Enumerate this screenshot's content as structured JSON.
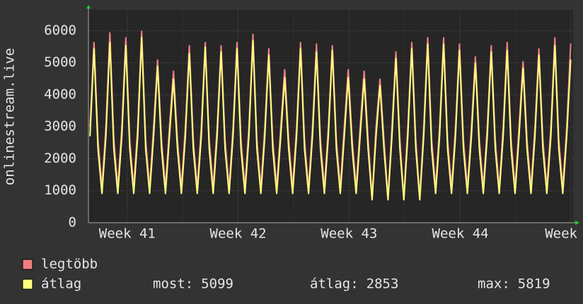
{
  "chart_data": {
    "type": "line",
    "y_label": "onlinestream.live",
    "ylim": [
      0,
      6650
    ],
    "yticks": [
      0,
      1000,
      2000,
      3000,
      4000,
      5000,
      6000
    ],
    "xlim": [
      0,
      30.5
    ],
    "xticks": [
      {
        "value": 2.44,
        "label": "Week 41"
      },
      {
        "value": 9.42,
        "label": "Week 42"
      },
      {
        "value": 16.4,
        "label": "Week 43"
      },
      {
        "value": 23.4,
        "label": "Week 44"
      },
      {
        "value": 30.36,
        "label": "Week"
      }
    ],
    "grid": true,
    "x": [
      0.1,
      0.35,
      0.6,
      0.85,
      1.1,
      1.35,
      1.6,
      1.85,
      2.1,
      2.35,
      2.6,
      2.85,
      3.1,
      3.35,
      3.6,
      3.85,
      4.1,
      4.35,
      4.6,
      4.85,
      5.1,
      5.35,
      5.6,
      5.85,
      6.1,
      6.35,
      6.6,
      6.85,
      7.1,
      7.35,
      7.6,
      7.85,
      8.1,
      8.35,
      8.6,
      8.85,
      9.1,
      9.35,
      9.6,
      9.85,
      10.1,
      10.35,
      10.6,
      10.85,
      11.1,
      11.35,
      11.6,
      11.85,
      12.1,
      12.35,
      12.6,
      12.85,
      13.1,
      13.35,
      13.6,
      13.85,
      14.1,
      14.35,
      14.6,
      14.85,
      15.1,
      15.35,
      15.6,
      15.85,
      16.1,
      16.35,
      16.6,
      16.85,
      17.1,
      17.35,
      17.6,
      17.85,
      18.1,
      18.35,
      18.6,
      18.85,
      19.1,
      19.35,
      19.6,
      19.85,
      20.1,
      20.35,
      20.6,
      20.85,
      21.1,
      21.35,
      21.6,
      21.85,
      22.1,
      22.35,
      22.6,
      22.85,
      23.1,
      23.35,
      23.6,
      23.85,
      24.1,
      24.35,
      24.6,
      24.85,
      25.1,
      25.35,
      25.6,
      25.85,
      26.1,
      26.35,
      26.6,
      26.85,
      27.1,
      27.35,
      27.6,
      27.85,
      28.1,
      28.35,
      28.6,
      28.85,
      29.1,
      29.35,
      29.6,
      29.85,
      30.1,
      30.35
    ],
    "series": [
      {
        "name": "legtöbb",
        "color": "#f07f7f",
        "values": [
          3000,
          5650,
          2600,
          1100,
          3000,
          5950,
          2600,
          1100,
          3000,
          5800,
          2600,
          1100,
          3000,
          6000,
          2600,
          1100,
          3000,
          5100,
          2600,
          1100,
          3000,
          4750,
          2600,
          1100,
          3000,
          5550,
          2600,
          1100,
          3000,
          5650,
          2600,
          1100,
          3000,
          5550,
          2600,
          1100,
          3000,
          5650,
          2600,
          1100,
          3000,
          5900,
          2600,
          1100,
          3000,
          5450,
          2600,
          1100,
          3000,
          4800,
          2600,
          1100,
          3000,
          5650,
          2600,
          1100,
          3000,
          5600,
          2600,
          1100,
          3000,
          5550,
          2600,
          1100,
          3000,
          4800,
          2600,
          1100,
          3000,
          4750,
          2600,
          800,
          3000,
          4500,
          2600,
          800,
          3000,
          5350,
          2600,
          800,
          3000,
          5650,
          2600,
          800,
          3000,
          5800,
          2600,
          1100,
          3000,
          5800,
          2600,
          1100,
          3000,
          5600,
          2600,
          1100,
          3000,
          5200,
          2600,
          1100,
          3000,
          5550,
          2600,
          1100,
          3000,
          5650,
          2600,
          1100,
          3000,
          5050,
          2600,
          1100,
          3000,
          5450,
          2600,
          1100,
          3000,
          5800,
          2600,
          1100,
          3000,
          5600
        ]
      },
      {
        "name": "átlag",
        "color": "#ffff80",
        "values": [
          2700,
          5450,
          2300,
          900,
          2700,
          5650,
          2300,
          900,
          2700,
          5550,
          2300,
          900,
          2700,
          5800,
          2300,
          900,
          2700,
          4900,
          2300,
          900,
          2700,
          4500,
          2300,
          900,
          2700,
          5300,
          2300,
          900,
          2700,
          5500,
          2300,
          900,
          2700,
          5350,
          2300,
          900,
          2700,
          5450,
          2300,
          900,
          2700,
          5700,
          2300,
          900,
          2700,
          5250,
          2300,
          900,
          2700,
          4550,
          2300,
          900,
          2700,
          5450,
          2300,
          900,
          2700,
          5350,
          2300,
          900,
          2700,
          5400,
          2300,
          900,
          2700,
          4550,
          2300,
          900,
          2700,
          4500,
          2300,
          700,
          2700,
          4300,
          2300,
          700,
          2700,
          5150,
          2300,
          700,
          2700,
          5450,
          2300,
          700,
          2700,
          5600,
          2300,
          900,
          2700,
          5600,
          2300,
          900,
          2700,
          5400,
          2300,
          900,
          2700,
          5000,
          2300,
          900,
          2700,
          5350,
          2300,
          900,
          2700,
          5400,
          2300,
          900,
          2700,
          4850,
          2300,
          900,
          2700,
          5250,
          2300,
          900,
          2700,
          5550,
          2300,
          900,
          2700,
          5100
        ]
      }
    ],
    "stats": [
      {
        "label": "most:",
        "value": "5099"
      },
      {
        "label": "átlag:",
        "value": "2853"
      },
      {
        "label": "max:",
        "value": "5819"
      }
    ]
  }
}
